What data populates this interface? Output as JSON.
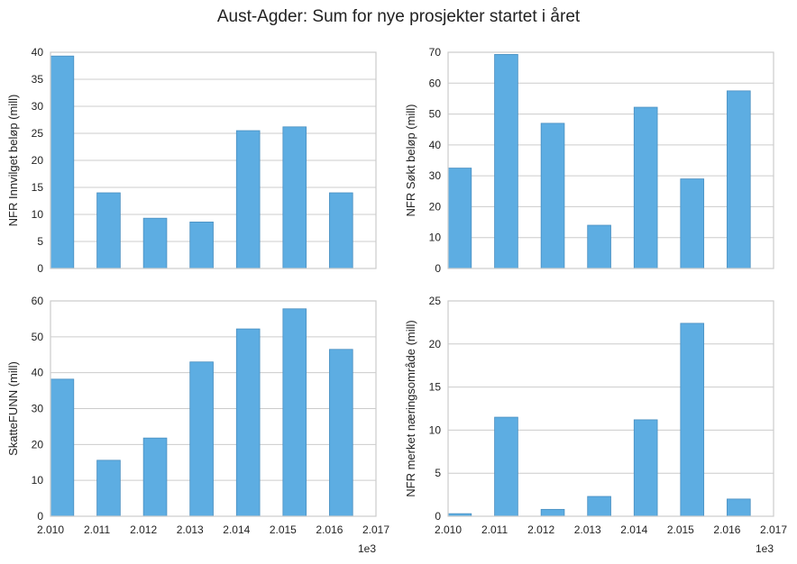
{
  "title": "Aust-Agder: Sum for nye prosjekter startet i året",
  "colors": {
    "bar": "#5DADE2",
    "bar_edge": "#4A8FC0",
    "grid": "#CCCCCC",
    "axes": "#CCCCCC"
  },
  "chart_data": [
    {
      "type": "bar",
      "ylabel": "NFR Innvilget beløp (mill)",
      "x": [
        2010,
        2011,
        2012,
        2013,
        2014,
        2015,
        2016
      ],
      "values": [
        39.3,
        14.0,
        9.3,
        8.6,
        25.5,
        26.2,
        14.0
      ],
      "ylim": [
        0,
        40
      ],
      "yticks": [
        "0",
        "5",
        "10",
        "15",
        "20",
        "25",
        "30",
        "35",
        "40"
      ],
      "xlim": [
        2010,
        2017
      ],
      "xtick_labels": [],
      "x_offset_label": "",
      "grid": true
    },
    {
      "type": "bar",
      "ylabel": "NFR Søkt beløp (mill)",
      "x": [
        2010,
        2011,
        2012,
        2013,
        2014,
        2015,
        2016
      ],
      "values": [
        32.5,
        69.3,
        47.0,
        14.0,
        52.2,
        29.0,
        57.5
      ],
      "ylim": [
        0,
        70
      ],
      "yticks": [
        "0",
        "10",
        "20",
        "30",
        "40",
        "50",
        "60",
        "70"
      ],
      "xlim": [
        2010,
        2017
      ],
      "xtick_labels": [],
      "x_offset_label": "",
      "grid": true
    },
    {
      "type": "bar",
      "ylabel": "SkatteFUNN (mill)",
      "x": [
        2010,
        2011,
        2012,
        2013,
        2014,
        2015,
        2016
      ],
      "values": [
        38.2,
        15.6,
        21.8,
        43.0,
        52.2,
        57.8,
        46.5
      ],
      "ylim": [
        0,
        60
      ],
      "yticks": [
        "0",
        "10",
        "20",
        "30",
        "40",
        "50",
        "60"
      ],
      "xlim": [
        2010,
        2017
      ],
      "xtick_labels": [
        "2.010",
        "2.011",
        "2.012",
        "2.013",
        "2.014",
        "2.015",
        "2.016",
        "2.017"
      ],
      "x_offset_label": "1e3",
      "grid": true
    },
    {
      "type": "bar",
      "ylabel": "NFR merket næringsområde (mill)",
      "x": [
        2010,
        2011,
        2012,
        2013,
        2014,
        2015,
        2016
      ],
      "values": [
        0.3,
        11.5,
        0.8,
        2.3,
        11.2,
        22.4,
        2.0
      ],
      "ylim": [
        0,
        25
      ],
      "yticks": [
        "0",
        "5",
        "10",
        "15",
        "20",
        "25"
      ],
      "xlim": [
        2010,
        2017
      ],
      "xtick_labels": [
        "2.010",
        "2.011",
        "2.012",
        "2.013",
        "2.014",
        "2.015",
        "2.016",
        "2.017"
      ],
      "x_offset_label": "1e3",
      "grid": true
    }
  ]
}
